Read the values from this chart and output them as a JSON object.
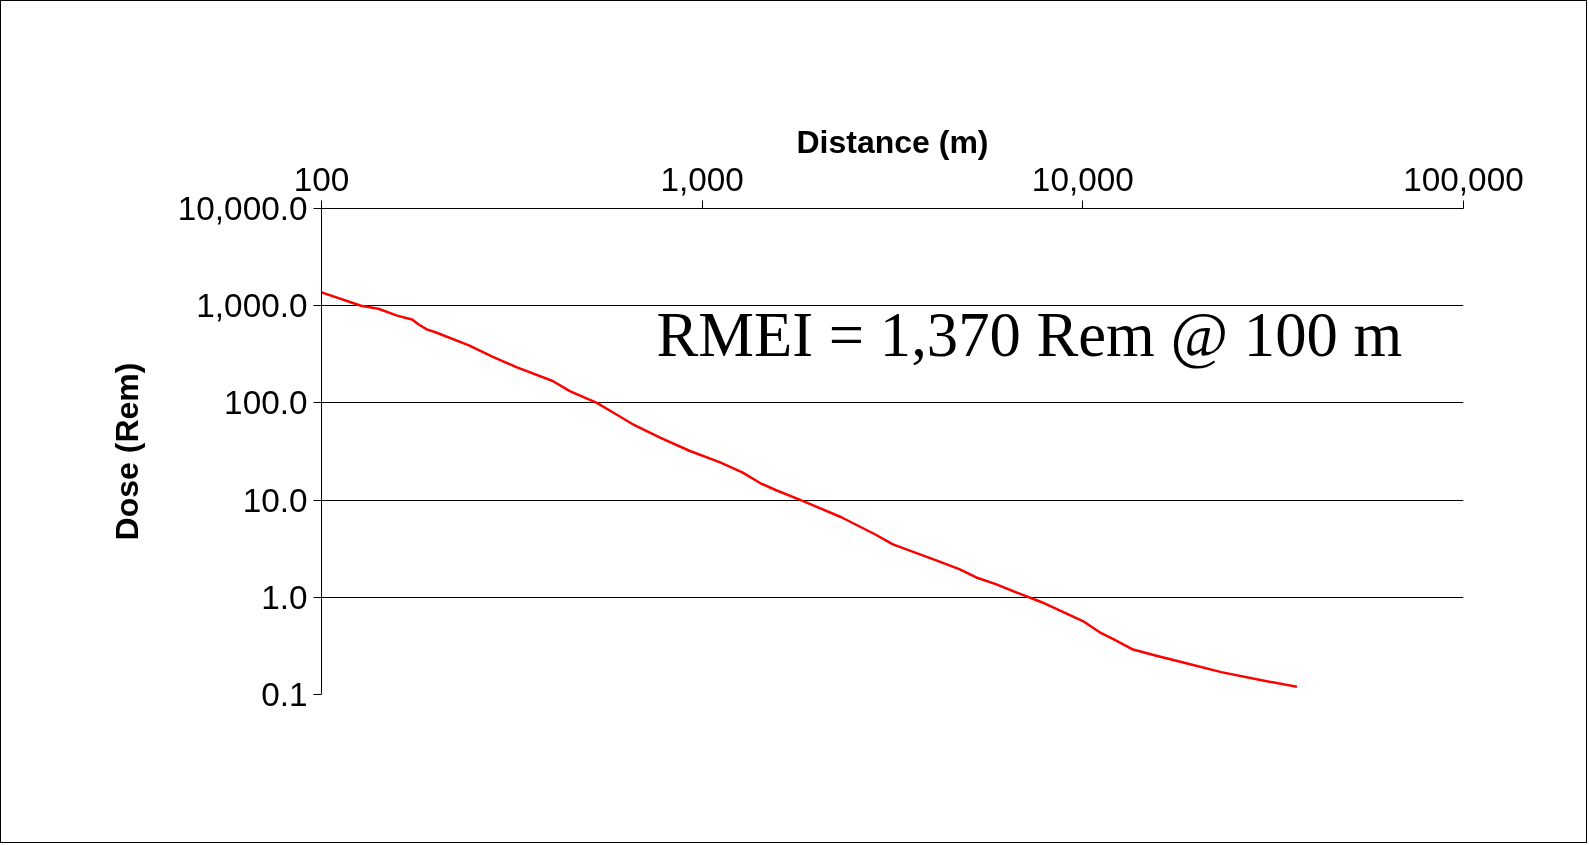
{
  "chart_data": {
    "type": "line",
    "xlabel": "Distance (m)",
    "ylabel": "Dose (Rem)",
    "log": "xy",
    "grid": "y",
    "marker": "none",
    "line_style": "solid",
    "annotations": [
      "RMEI = 1,370 Rem @ 100 m"
    ],
    "xlim": [
      100,
      100000
    ],
    "ylim": [
      0.1,
      10000
    ],
    "xticks": [
      100,
      {
        "value": 1000,
        "label": "1,000"
      },
      {
        "value": 10000,
        "label": "10,000"
      },
      {
        "value": 100000,
        "label": "100,000"
      }
    ],
    "yticks": [
      {
        "value": 0.1,
        "label": "0.1"
      },
      {
        "value": 1,
        "label": "1.0"
      },
      {
        "value": 10,
        "label": "10.0"
      },
      {
        "value": 100,
        "label": "100.0"
      },
      {
        "value": 1000,
        "label": "1,000.0"
      },
      {
        "value": 10000,
        "label": "10,000.0"
      }
    ],
    "x": [
      100,
      127,
      141,
      158,
      173,
      180,
      189,
      200,
      244,
      281,
      325,
      405,
      449,
      529,
      579,
      654,
      775,
      929,
      1115,
      1275,
      1423,
      1559,
      1816,
      2313,
      2860,
      3170,
      4120,
      4735,
      5250,
      5930,
      6900,
      7800,
      10000,
      11150,
      12200,
      13550,
      15600,
      18700,
      23100,
      29500,
      36500
    ],
    "series": [
      {
        "color": "#ff0000",
        "values": [
          1370,
          1000,
          930,
          790,
          720,
          640,
          570,
          530,
          390,
          300,
          233,
          168,
          132,
          100,
          81,
          61,
          44,
          32,
          24.4,
          19.3,
          14.9,
          12.7,
          10,
          6.7,
          4.4,
          3.5,
          2.4,
          1.95,
          1.6,
          1.36,
          1.07,
          0.89,
          0.57,
          0.43,
          0.36,
          0.29,
          0.25,
          0.21,
          0.17,
          0.14,
          0.12
        ]
      }
    ]
  }
}
